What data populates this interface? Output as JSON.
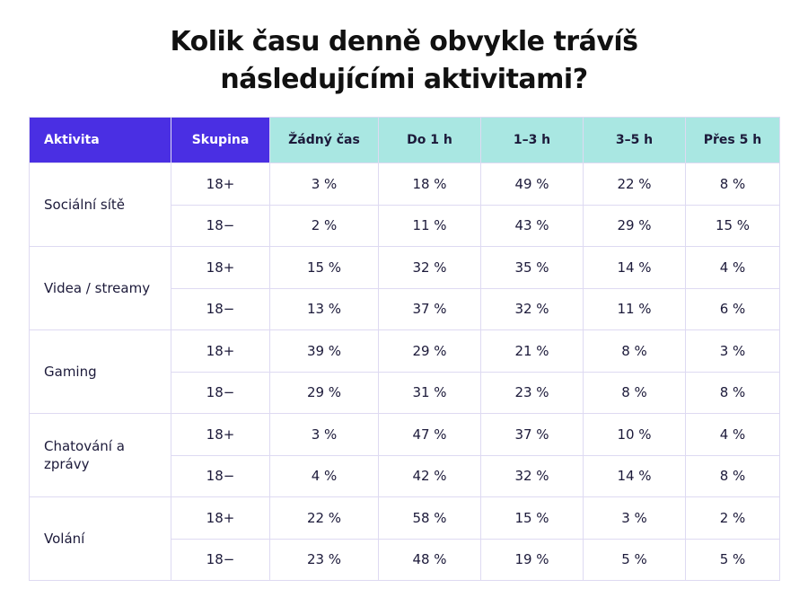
{
  "title": "Kolik času denně obvykle trávíš následujícími aktivitami?",
  "table": {
    "header": [
      "Aktivita",
      "Skupina",
      "Žádný čas",
      "Do 1 h",
      "1–3 h",
      "3–5 h",
      "Přes 5 h"
    ],
    "rows": [
      {
        "activity": "Sociální sítě",
        "groups": [
          {
            "group": "18+",
            "cells": [
              "3 %",
              "18 %",
              "49 %",
              "22 %",
              "8 %"
            ]
          },
          {
            "group": "18−",
            "cells": [
              "2 %",
              "11 %",
              "43 %",
              "29 %",
              "15 %"
            ]
          }
        ]
      },
      {
        "activity": "Videa / streamy",
        "groups": [
          {
            "group": "18+",
            "cells": [
              "15 %",
              "32 %",
              "35 %",
              "14 %",
              "4 %"
            ]
          },
          {
            "group": "18−",
            "cells": [
              "13 %",
              "37 %",
              "32 %",
              "11 %",
              "6 %"
            ]
          }
        ]
      },
      {
        "activity": "Gaming",
        "groups": [
          {
            "group": "18+",
            "cells": [
              "39 %",
              "29 %",
              "21 %",
              "8 %",
              "3 %"
            ]
          },
          {
            "group": "18−",
            "cells": [
              "29 %",
              "31 %",
              "23 %",
              "8 %",
              "8 %"
            ]
          }
        ]
      },
      {
        "activity": "Chatování a zprávy",
        "groups": [
          {
            "group": "18+",
            "cells": [
              "3 %",
              "47 %",
              "37 %",
              "10 %",
              "4 %"
            ]
          },
          {
            "group": "18−",
            "cells": [
              "4 %",
              "42 %",
              "32 %",
              "14 %",
              "8 %"
            ]
          }
        ]
      },
      {
        "activity": "Volání",
        "groups": [
          {
            "group": "18+",
            "cells": [
              "22 %",
              "58 %",
              "15 %",
              "3 %",
              "2 %"
            ]
          },
          {
            "group": "18−",
            "cells": [
              "23 %",
              "48 %",
              "19 %",
              "5 %",
              "5 %"
            ]
          }
        ]
      }
    ]
  }
}
